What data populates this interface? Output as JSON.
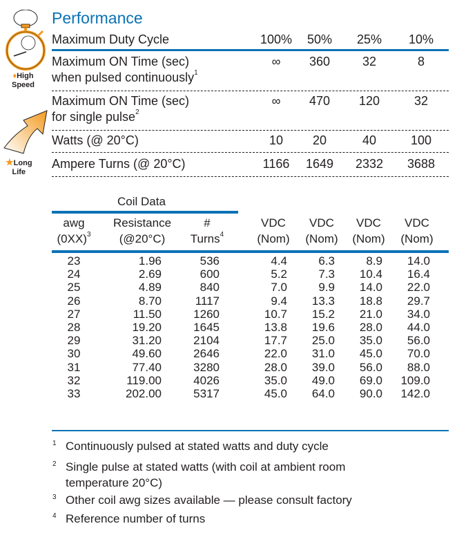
{
  "performance": {
    "title": "Performance",
    "badges": {
      "high_speed": [
        "High",
        "Speed"
      ],
      "long_life": [
        "Long",
        "Life"
      ]
    },
    "rows": [
      {
        "label": [
          "Maximum Duty Cycle"
        ],
        "sup": "",
        "values": [
          "100%",
          "50%",
          "25%",
          "10%"
        ]
      },
      {
        "label": [
          "Maximum ON Time (sec)",
          "when pulsed continuously"
        ],
        "sup": "1",
        "values": [
          "∞",
          "360",
          "32",
          "8"
        ]
      },
      {
        "label": [
          "Maximum ON Time (sec)",
          "for single pulse"
        ],
        "sup": "2",
        "values": [
          "∞",
          "470",
          "120",
          "32"
        ]
      },
      {
        "label": [
          "Watts (@ 20°C)"
        ],
        "sup": "",
        "values": [
          "10",
          "20",
          "40",
          "100"
        ]
      },
      {
        "label": [
          "Ampere Turns (@ 20°C)"
        ],
        "sup": "",
        "values": [
          "1166",
          "1649",
          "2332",
          "3688"
        ]
      }
    ]
  },
  "coil": {
    "title": "Coil Data",
    "headers": [
      [
        "awg",
        "(0XX)",
        "3"
      ],
      [
        "Resistance",
        "(@20°C)",
        ""
      ],
      [
        "#",
        "Turns",
        "4"
      ],
      [
        "VDC",
        "(Nom)",
        ""
      ],
      [
        "VDC",
        "(Nom)",
        ""
      ],
      [
        "VDC",
        "(Nom)",
        ""
      ],
      [
        "VDC",
        "(Nom)",
        ""
      ]
    ],
    "rows": [
      [
        "23",
        "1.96",
        "536",
        "4.4",
        "6.3",
        "8.9",
        "14.0"
      ],
      [
        "24",
        "2.69",
        "600",
        "5.2",
        "7.3",
        "10.4",
        "16.4"
      ],
      [
        "25",
        "4.89",
        "840",
        "7.0",
        "9.9",
        "14.0",
        "22.0"
      ],
      [
        "26",
        "8.70",
        "1117",
        "9.4",
        "13.3",
        "18.8",
        "29.7"
      ],
      [
        "27",
        "11.50",
        "1260",
        "10.7",
        "15.2",
        "21.0",
        "34.0"
      ],
      [
        "28",
        "19.20",
        "1645",
        "13.8",
        "19.6",
        "28.0",
        "44.0"
      ],
      [
        "29",
        "31.20",
        "2104",
        "17.7",
        "25.0",
        "35.0",
        "56.0"
      ],
      [
        "30",
        "49.60",
        "2646",
        "22.0",
        "31.0",
        "45.0",
        "70.0"
      ],
      [
        "31",
        "77.40",
        "3280",
        "28.0",
        "39.0",
        "56.0",
        "88.0"
      ],
      [
        "32",
        "119.00",
        "4026",
        "35.0",
        "49.0",
        "69.0",
        "109.0"
      ],
      [
        "33",
        "202.00",
        "5317",
        "45.0",
        "64.0",
        "90.0",
        "142.0"
      ]
    ]
  },
  "footnotes": [
    {
      "n": "1",
      "text": [
        "Continuously pulsed at stated watts and duty cycle"
      ]
    },
    {
      "n": "2",
      "text": [
        "Single pulse at stated watts (with coil at ambient room",
        "temperature 20°C)"
      ]
    },
    {
      "n": "3",
      "text": [
        "Other coil awg sizes available — please consult factory"
      ]
    },
    {
      "n": "4",
      "text": [
        "Reference number of turns"
      ]
    }
  ],
  "colors": {
    "accent": "#0a72b5",
    "orange": "#f39a1e"
  }
}
